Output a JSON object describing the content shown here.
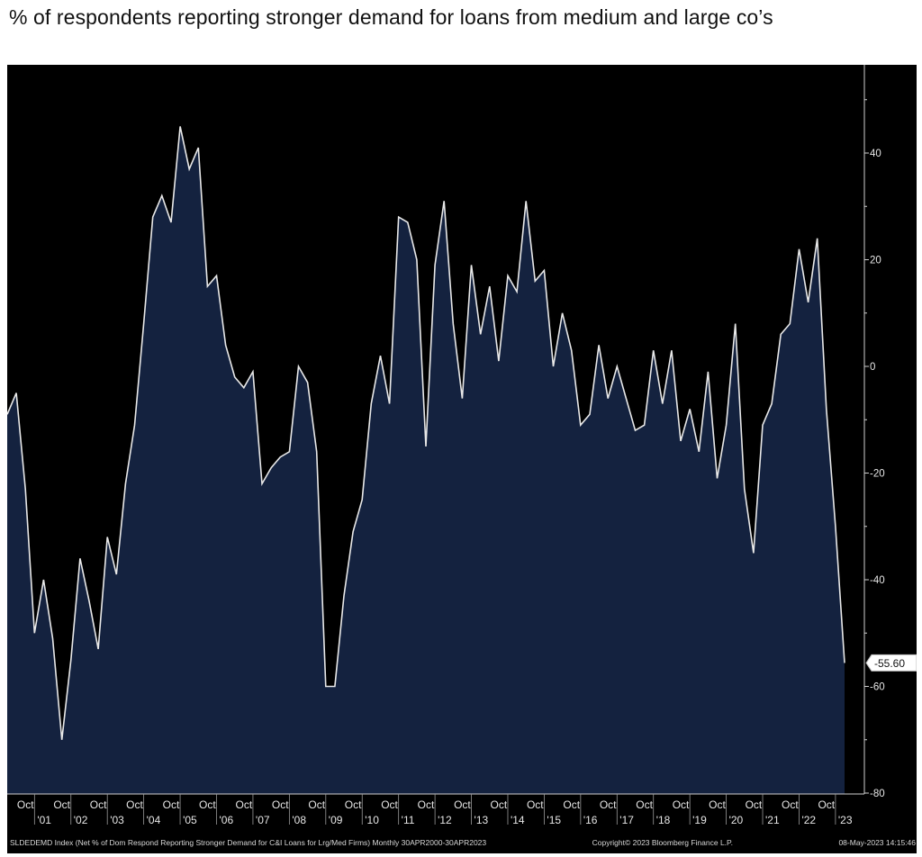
{
  "header": {
    "title": "% of respondents reporting stronger demand for loans from medium and large co’s"
  },
  "footer": {
    "ticker": "SLDEDEMD Index (Net % of Dom Respond Reporting Stronger Demand for C&I Loans for Lrg/Med Firms)  Monthly 30APR2000-30APR2023",
    "copyright": "Copyright© 2023 Bloomberg Finance L.P.",
    "timestamp": "08-May-2023 14:15:46"
  },
  "colors": {
    "background": "#000000",
    "area_fill": "#14223f",
    "line": "#e8e8e8",
    "axis": "#cfcfcf"
  },
  "chart_data": {
    "type": "area",
    "title": "% of respondents reporting stronger demand for loans from medium and large co’s",
    "xlabel": "",
    "ylabel": "",
    "ylim": [
      -80,
      50
    ],
    "yticks": [
      40,
      20,
      0,
      -20,
      -40,
      -60,
      -80
    ],
    "ytick_labels": [
      "40",
      "20",
      "0",
      "-20",
      "-40",
      "-60",
      "-80"
    ],
    "last_value_label": "-55.60",
    "grid": false,
    "x_tick_top": [
      "Oct",
      "Oct",
      "Oct",
      "Oct",
      "Oct",
      "Oct",
      "Oct",
      "Oct",
      "Oct",
      "Oct",
      "Oct",
      "Oct",
      "Oct",
      "Oct",
      "Oct",
      "Oct",
      "Oct",
      "Oct",
      "Oct",
      "Oct",
      "Oct",
      "Oct",
      "Oct"
    ],
    "x_tick_bottom": [
      "'01",
      "'02",
      "'03",
      "'04",
      "'05",
      "'06",
      "'07",
      "'08",
      "'09",
      "'10",
      "'11",
      "'12",
      "'13",
      "'14",
      "'15",
      "'16",
      "'17",
      "'18",
      "'19",
      "'20",
      "'21",
      "'22",
      "'23"
    ],
    "series": [
      {
        "x": [
          "2000-04",
          "2000-07",
          "2000-10",
          "2001-01",
          "2001-04",
          "2001-07",
          "2001-10",
          "2002-01",
          "2002-04",
          "2002-07",
          "2002-10",
          "2003-01",
          "2003-04",
          "2003-07",
          "2003-10",
          "2004-01",
          "2004-04",
          "2004-07",
          "2004-10",
          "2005-01",
          "2005-04",
          "2005-07",
          "2005-10",
          "2006-01",
          "2006-04",
          "2006-07",
          "2006-10",
          "2007-01",
          "2007-04",
          "2007-07",
          "2007-10",
          "2008-01",
          "2008-04",
          "2008-07",
          "2008-10",
          "2009-01",
          "2009-04",
          "2009-07",
          "2009-10",
          "2010-01",
          "2010-04",
          "2010-07",
          "2010-10",
          "2011-01",
          "2011-04",
          "2011-07",
          "2011-10",
          "2012-01",
          "2012-04",
          "2012-07",
          "2012-10",
          "2013-01",
          "2013-04",
          "2013-07",
          "2013-10",
          "2014-01",
          "2014-04",
          "2014-07",
          "2014-10",
          "2015-01",
          "2015-04",
          "2015-07",
          "2015-10",
          "2016-01",
          "2016-04",
          "2016-07",
          "2016-10",
          "2017-01",
          "2017-04",
          "2017-07",
          "2017-10",
          "2018-01",
          "2018-04",
          "2018-07",
          "2018-10",
          "2019-01",
          "2019-04",
          "2019-07",
          "2019-10",
          "2020-01",
          "2020-04",
          "2020-07",
          "2020-10",
          "2021-01",
          "2021-04",
          "2021-07",
          "2021-10",
          "2022-01",
          "2022-04",
          "2022-07",
          "2022-10",
          "2023-01",
          "2023-04"
        ],
        "values": [
          -9,
          -5,
          -23,
          -50,
          -40,
          -51,
          -70,
          -55,
          -36,
          -44,
          -53,
          -32,
          -39,
          -22,
          -11,
          8,
          28,
          32,
          27,
          45,
          37,
          41,
          15,
          17,
          4,
          -2,
          -4,
          -1,
          -22,
          -19,
          -17,
          -16,
          0,
          -3,
          -16,
          -60,
          -60,
          -43,
          -31,
          -25,
          -7,
          2,
          -7,
          28,
          27,
          20,
          -15,
          19,
          31,
          8,
          -6,
          19,
          6,
          15,
          1,
          17,
          14,
          31,
          16,
          18,
          0,
          10,
          3,
          -11,
          -9,
          4,
          -6,
          0,
          -6,
          -12,
          -11,
          3,
          -7,
          3,
          -14,
          -8,
          -16,
          -1,
          -21,
          -11,
          8,
          -23,
          -35,
          -11,
          -7,
          6,
          8,
          22,
          12,
          24,
          -8,
          -30,
          -55.6
        ]
      }
    ]
  }
}
